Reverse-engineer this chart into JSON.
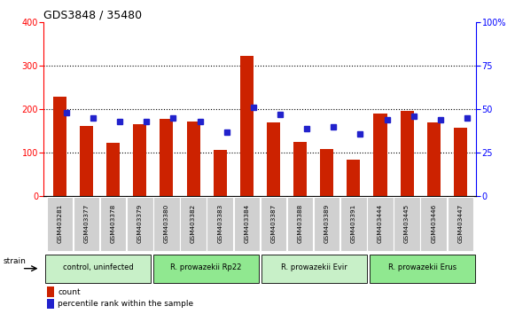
{
  "title": "GDS3848 / 35480",
  "samples": [
    "GSM403281",
    "GSM403377",
    "GSM403378",
    "GSM403379",
    "GSM403380",
    "GSM403382",
    "GSM403383",
    "GSM403384",
    "GSM403387",
    "GSM403388",
    "GSM403389",
    "GSM403391",
    "GSM403444",
    "GSM403445",
    "GSM403446",
    "GSM403447"
  ],
  "counts": [
    228,
    162,
    122,
    165,
    178,
    172,
    107,
    323,
    170,
    125,
    108,
    85,
    190,
    195,
    170,
    157
  ],
  "percentiles": [
    48,
    45,
    43,
    43,
    45,
    43,
    37,
    51,
    47,
    39,
    40,
    36,
    44,
    46,
    44,
    45
  ],
  "groups": [
    {
      "label": "control, uninfected",
      "start": 0,
      "end": 4,
      "color": "#c8f0c8"
    },
    {
      "label": "R. prowazekii Rp22",
      "start": 4,
      "end": 8,
      "color": "#90e890"
    },
    {
      "label": "R. prowazekii Evir",
      "start": 8,
      "end": 12,
      "color": "#c8f0c8"
    },
    {
      "label": "R. prowazekii Erus",
      "start": 12,
      "end": 16,
      "color": "#90e890"
    }
  ],
  "ylim_left": [
    0,
    400
  ],
  "ylim_right": [
    0,
    100
  ],
  "yticks_left": [
    0,
    100,
    200,
    300,
    400
  ],
  "yticks_right": [
    0,
    25,
    50,
    75,
    100
  ],
  "bar_color": "#cc2200",
  "dot_color": "#2222cc",
  "bg_color": "#ffffff",
  "legend_count_label": "count",
  "legend_pct_label": "percentile rank within the sample",
  "strain_label": "strain"
}
